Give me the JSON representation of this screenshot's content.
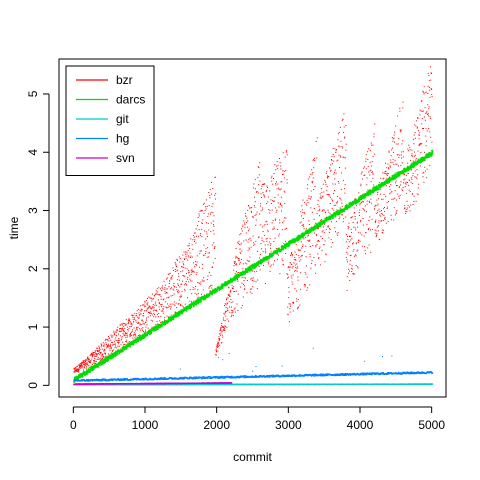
{
  "chart_data": {
    "type": "scatter",
    "title": "",
    "xlabel": "commit",
    "ylabel": "time",
    "xlim": [
      -200,
      5200
    ],
    "ylim": [
      -0.2,
      5.6
    ],
    "xticks": [
      0,
      1000,
      2000,
      3000,
      4000,
      5000
    ],
    "yticks": [
      0,
      1,
      2,
      3,
      4,
      5
    ],
    "grid": false,
    "legend_position": "top-left",
    "x_range": [
      0,
      5000
    ],
    "series": [
      {
        "name": "bzr",
        "color": "#ff0000",
        "points_shown": "sampled",
        "shape": "sawtooth",
        "segments": [
          {
            "x_start": 0,
            "x_end": 200,
            "base_start": 0.2,
            "base_end": 0.3,
            "peak_start": 0.3,
            "peak_end": 0.5
          },
          {
            "x_start": 200,
            "x_end": 520,
            "base_start": 0.3,
            "base_end": 0.5,
            "peak_start": 0.5,
            "peak_end": 0.9
          },
          {
            "x_start": 520,
            "x_end": 860,
            "base_start": 0.5,
            "base_end": 0.8,
            "peak_start": 0.9,
            "peak_end": 1.3
          },
          {
            "x_start": 860,
            "x_end": 1250,
            "base_start": 0.8,
            "base_end": 1.0,
            "peak_start": 1.3,
            "peak_end": 1.8
          },
          {
            "x_start": 1250,
            "x_end": 1600,
            "base_start": 1.0,
            "base_end": 1.4,
            "peak_start": 1.8,
            "peak_end": 2.5
          },
          {
            "x_start": 1600,
            "x_end": 1980,
            "base_start": 1.4,
            "base_end": 1.6,
            "peak_start": 2.5,
            "peak_end": 3.7
          },
          {
            "x_start": 1980,
            "x_end": 2250,
            "base_start": 0.5,
            "base_end": 1.2,
            "peak_start": 0.6,
            "peak_end": 2.3
          },
          {
            "x_start": 2250,
            "x_end": 2600,
            "base_start": 1.2,
            "base_end": 1.7,
            "peak_start": 2.3,
            "peak_end": 3.9
          },
          {
            "x_start": 2600,
            "x_end": 2980,
            "base_start": 1.7,
            "base_end": 1.9,
            "peak_start": 3.4,
            "peak_end": 4.2
          },
          {
            "x_start": 2980,
            "x_end": 3400,
            "base_start": 1.0,
            "base_end": 1.9,
            "peak_start": 2.0,
            "peak_end": 4.3
          },
          {
            "x_start": 3400,
            "x_end": 3800,
            "base_start": 1.9,
            "base_end": 2.7,
            "peak_start": 3.2,
            "peak_end": 4.8
          },
          {
            "x_start": 3800,
            "x_end": 4200,
            "base_start": 1.6,
            "base_end": 2.4,
            "peak_start": 2.6,
            "peak_end": 4.6
          },
          {
            "x_start": 4200,
            "x_end": 4600,
            "base_start": 2.4,
            "base_end": 3.0,
            "peak_start": 3.2,
            "peak_end": 5.0
          },
          {
            "x_start": 4600,
            "x_end": 5000,
            "base_start": 2.8,
            "base_end": 3.6,
            "peak_start": 3.8,
            "peak_end": 5.7
          }
        ]
      },
      {
        "name": "darcs",
        "color": "#00dd00",
        "points_shown": "sampled",
        "shape": "linear",
        "trend": [
          [
            0,
            0.1
          ],
          [
            5000,
            4.0
          ]
        ]
      },
      {
        "name": "git",
        "color": "#00cccc",
        "points_shown": "sampled",
        "shape": "linear",
        "trend": [
          [
            0,
            0.01
          ],
          [
            5000,
            0.02
          ]
        ]
      },
      {
        "name": "hg",
        "color": "#0080ff",
        "points_shown": "sampled",
        "shape": "linear",
        "trend": [
          [
            0,
            0.08
          ],
          [
            5000,
            0.22
          ]
        ]
      },
      {
        "name": "svn",
        "color": "#cc00cc",
        "points_shown": "sampled",
        "shape": "linear",
        "trend": [
          [
            0,
            0.02
          ],
          [
            2200,
            0.04
          ]
        ]
      }
    ]
  }
}
